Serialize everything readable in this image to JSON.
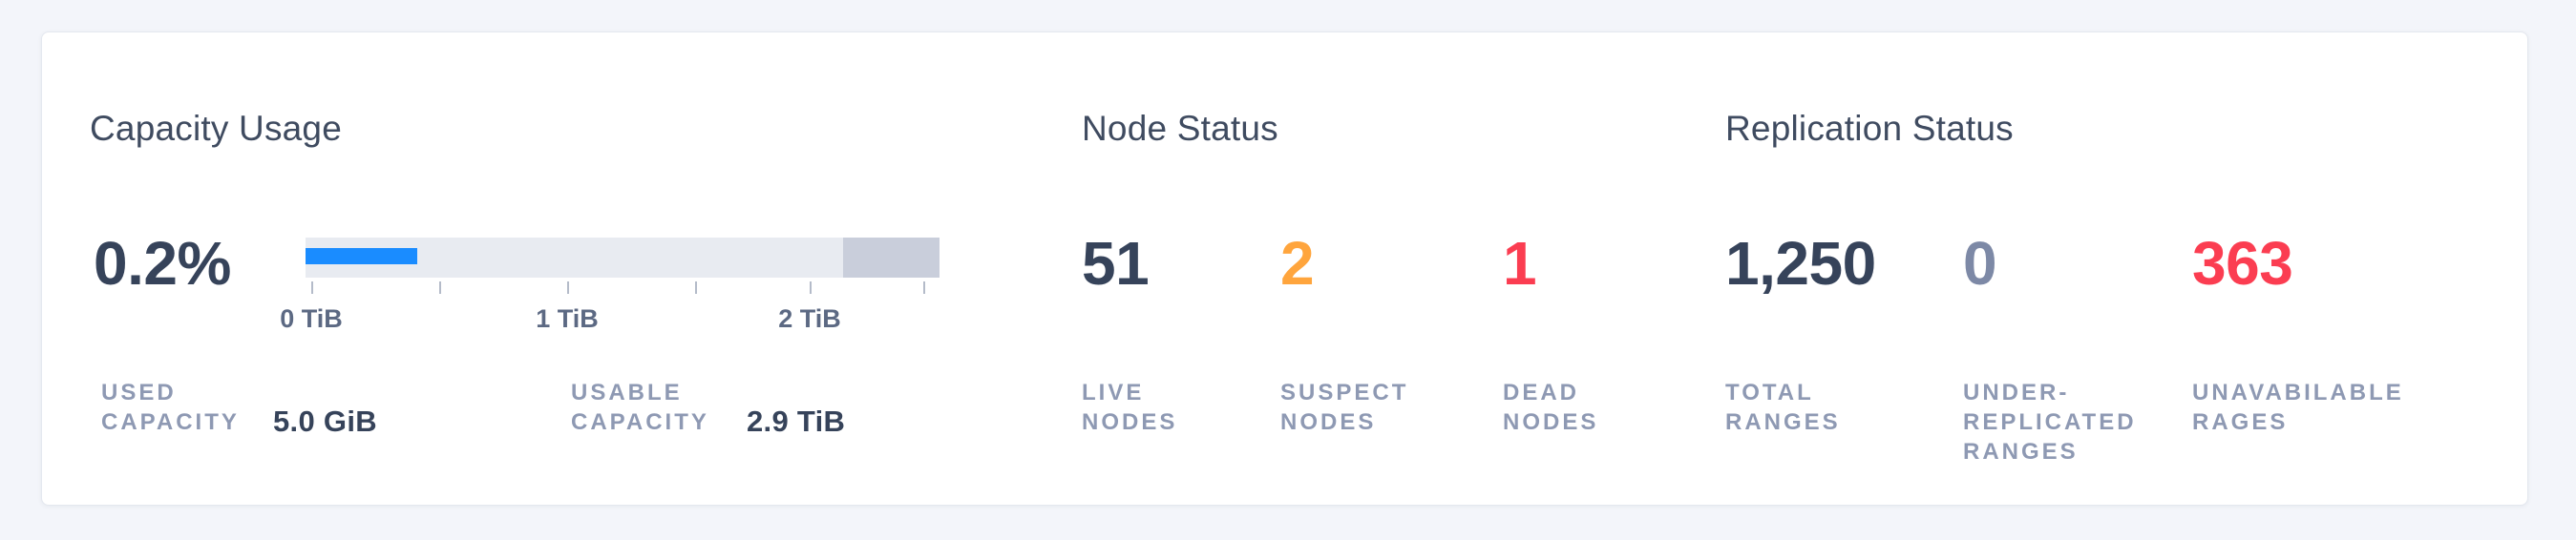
{
  "card": {
    "capacity": {
      "title": "Capacity Usage",
      "used_percent": "0.2%",
      "stats": [
        {
          "label": "USED\nCAPACITY",
          "value": "5.0 GiB"
        },
        {
          "label": "USABLE\nCAPACITY",
          "value": "2.9 TiB"
        }
      ]
    },
    "nodes": {
      "title": "Node Status",
      "stats": [
        {
          "value": "51",
          "label": "LIVE\nNODES",
          "color": "#36435a"
        },
        {
          "value": "2",
          "label": "SUSPECT\nNODES",
          "color": "#ffa53d"
        },
        {
          "value": "1",
          "label": "DEAD\nNODES",
          "color": "#fb3d51"
        }
      ]
    },
    "replication": {
      "title": "Replication Status",
      "stats": [
        {
          "value": "1,250",
          "label": "TOTAL\nRANGES",
          "color": "#36435a"
        },
        {
          "value": "0",
          "label": "UNDER-\nREPLICATED\nRANGES",
          "color": "#7d89a6"
        },
        {
          "value": "363",
          "label": "UNAVABILABLE\nRAGES",
          "color": "#fb3d51"
        }
      ]
    }
  },
  "chart_data": {
    "type": "bar",
    "title": "Capacity Usage",
    "xlabel": "TiB",
    "axis_tick_labels": [
      "0 TiB",
      "1 TiB",
      "2 TiB"
    ],
    "axis_tick_values_tib": [
      0,
      0.5,
      1,
      1.5,
      2,
      2.5
    ],
    "used_capacity": "5.0 GiB",
    "usable_capacity": "2.9 TiB",
    "used_percent_of_usable": 0.2,
    "used_bar_fraction_of_track": 0.176,
    "reserved_segment_start_fraction": 0.848,
    "reserved_segment_width_fraction": 0.152
  },
  "colors": {
    "page_bg": "#f3f5fa",
    "card_bg": "#ffffff",
    "title_text": "#3f4b60",
    "number_dark": "#36435a",
    "number_orange": "#ffa53d",
    "number_red": "#fb3d51",
    "number_muted": "#7d89a6",
    "caps_label": "#8e99b3",
    "tick_label": "#5c6983",
    "bar_used_blue": "#1a8cff",
    "bar_track": "#e8ebf1",
    "bar_reserved": "#c9cedb"
  }
}
